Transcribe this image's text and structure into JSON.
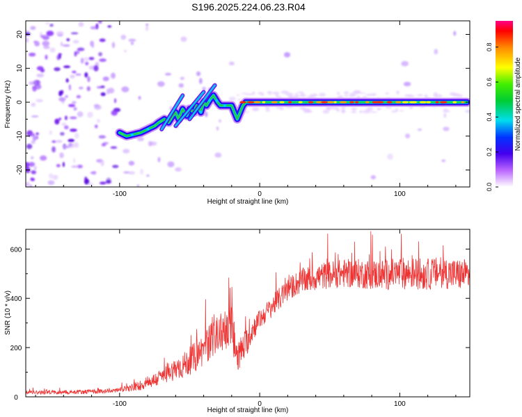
{
  "title": "S196.2025.224.06.23.R04",
  "chart_data": [
    {
      "type": "heatmap",
      "xlabel": "Height of straight line (km)",
      "ylabel": "Frequency (Hz)",
      "xlim": [
        -167,
        150
      ],
      "ylim": [
        -25,
        24
      ],
      "x_ticks": [
        -100,
        0,
        100
      ],
      "x_tick_labels": [
        "-100",
        "0",
        "100"
      ],
      "y_ticks": [
        -20,
        -10,
        0,
        10,
        20
      ],
      "y_tick_labels": [
        "-20",
        "-10",
        "0",
        "10",
        "20"
      ],
      "ridge": {
        "x": [
          -100,
          -95,
          -90,
          -85,
          -80,
          -75,
          -72,
          -68,
          -65,
          -62,
          -60,
          -58,
          -55,
          -52,
          -50,
          -47,
          -45,
          -42,
          -40,
          -38,
          -35,
          -33,
          -30,
          -28,
          -25,
          -22,
          -20,
          -18,
          -16,
          -14,
          -12,
          -10,
          -5,
          0,
          10,
          20,
          30,
          40,
          50,
          60,
          70,
          80,
          90,
          100,
          110,
          120,
          130,
          140,
          148
        ],
        "y": [
          -9,
          -10,
          -9.5,
          -9,
          -8,
          -7,
          -6,
          -5,
          -6,
          -4,
          -3,
          -5,
          -2,
          -4,
          -2,
          -3,
          -1,
          -3,
          0,
          -1,
          1,
          2,
          0,
          -1,
          -1,
          -1,
          -1,
          -3,
          -5,
          -3,
          -1,
          0,
          0,
          0,
          0,
          0,
          0,
          0,
          0,
          0,
          0,
          0,
          0,
          0,
          0,
          0,
          0,
          0,
          0
        ]
      },
      "colorbar": {
        "label": "Normalized spectral amplitude",
        "range": [
          0,
          0.95
        ],
        "ticks": [
          0.0,
          0.2,
          0.4,
          0.6,
          0.8
        ],
        "tick_labels": [
          "0.0",
          "0.2",
          "0.4",
          "0.6",
          "0.8"
        ]
      }
    },
    {
      "type": "line",
      "xlabel": "Height of straight line (km)",
      "ylabel": "SNR (10 * v/v)",
      "xlim": [
        -167,
        150
      ],
      "ylim": [
        0,
        680
      ],
      "x_ticks": [
        -100,
        0,
        100
      ],
      "x_tick_labels": [
        "-100",
        "0",
        "100"
      ],
      "y_ticks": [
        0,
        200,
        400,
        600
      ],
      "y_tick_labels": [
        "0",
        "200",
        "400",
        "600"
      ],
      "color": "#ee3333",
      "envelope": {
        "x": [
          -167,
          -140,
          -110,
          -95,
          -85,
          -75,
          -68,
          -60,
          -55,
          -50,
          -45,
          -40,
          -35,
          -30,
          -25,
          -20,
          -17,
          -14,
          -10,
          -5,
          0,
          5,
          10,
          15,
          20,
          25,
          30,
          40,
          50,
          60,
          70,
          80,
          90,
          100,
          110,
          120,
          130,
          140,
          150
        ],
        "y": [
          18,
          18,
          22,
          30,
          45,
          65,
          85,
          110,
          120,
          140,
          160,
          190,
          220,
          250,
          260,
          280,
          180,
          170,
          210,
          270,
          310,
          340,
          370,
          400,
          430,
          450,
          465,
          480,
          490,
          495,
          495,
          490,
          490,
          495,
          495,
          490,
          500,
          490,
          490
        ]
      },
      "spread": {
        "x": [
          -167,
          -100,
          -80,
          -60,
          -40,
          -20,
          0,
          40,
          100,
          150
        ],
        "y": [
          8,
          10,
          25,
          45,
          70,
          80,
          40,
          55,
          65,
          65
        ]
      }
    }
  ]
}
